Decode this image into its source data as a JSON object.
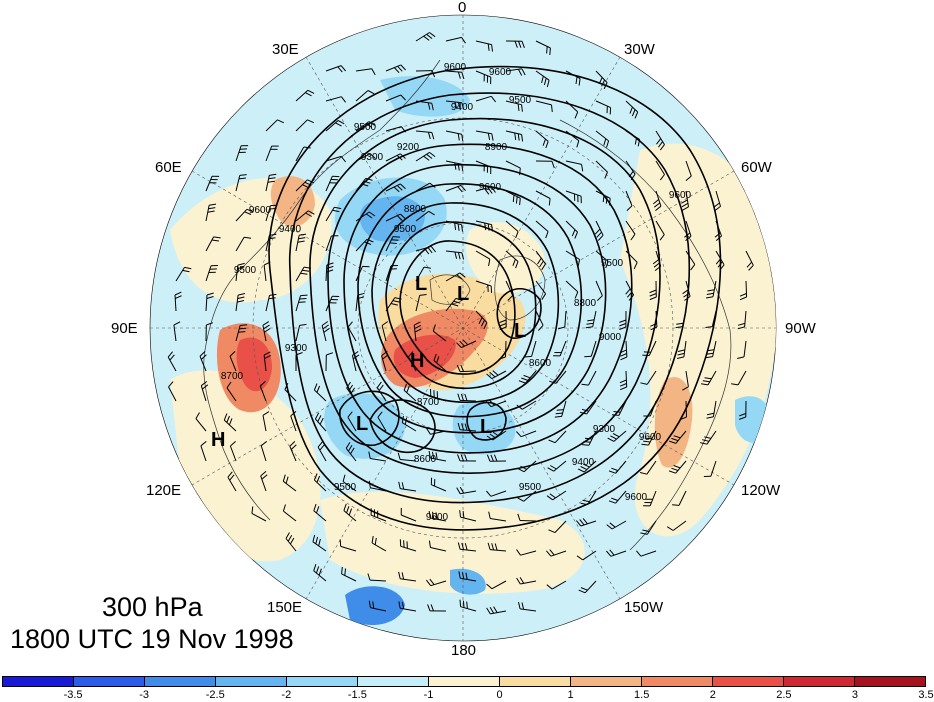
{
  "title": {
    "level": "300 hPa",
    "time": "1800 UTC 19 Nov 1998"
  },
  "map": {
    "projection": "polar-stereographic-north",
    "longitude_labels": [
      "0",
      "30W",
      "60W",
      "90W",
      "120W",
      "150W",
      "180",
      "150E",
      "120E",
      "90E",
      "60E",
      "30E"
    ],
    "systems": [
      {
        "type": "H",
        "name": "high-siberia-arctic"
      },
      {
        "type": "H",
        "name": "high-east-asia"
      },
      {
        "type": "L",
        "name": "low-kara"
      },
      {
        "type": "L",
        "name": "low-barents"
      },
      {
        "type": "L",
        "name": "low-greenland"
      },
      {
        "type": "L",
        "name": "low-okhotsk"
      },
      {
        "type": "L",
        "name": "low-bering"
      }
    ],
    "contour_labels": [
      "9600",
      "9500",
      "9400",
      "9300",
      "9200",
      "9100",
      "9000",
      "8900",
      "8800",
      "8700",
      "8600"
    ],
    "contour_label_instances": [
      {
        "text": "9600"
      },
      {
        "text": "9600"
      },
      {
        "text": "9500"
      },
      {
        "text": "9400"
      },
      {
        "text": "9500"
      },
      {
        "text": "9300"
      },
      {
        "text": "9200"
      },
      {
        "text": "9600"
      },
      {
        "text": "9400"
      },
      {
        "text": "9500"
      },
      {
        "text": "9300"
      },
      {
        "text": "8800"
      },
      {
        "text": "8700"
      },
      {
        "text": "8600"
      },
      {
        "text": "8700"
      },
      {
        "text": "8600"
      },
      {
        "text": "9500"
      },
      {
        "text": "9600"
      },
      {
        "text": "9500"
      },
      {
        "text": "9400"
      },
      {
        "text": "9300"
      },
      {
        "text": "9600"
      },
      {
        "text": "9600"
      },
      {
        "text": "9500"
      },
      {
        "text": "9000"
      },
      {
        "text": "8800"
      },
      {
        "text": "8900"
      },
      {
        "text": "9600"
      },
      {
        "text": "9500"
      },
      {
        "text": "9600"
      }
    ],
    "colors": {
      "background": "#ffffff",
      "ocean_fill": "#cdeff8",
      "contour": "#000000",
      "barb": "#000000"
    }
  },
  "colorbar": {
    "ticks": [
      "-3.5",
      "-3",
      "-2.5",
      "-2",
      "-1.5",
      "-1",
      "0",
      "1",
      "1.5",
      "2",
      "2.5",
      "3",
      "3.5"
    ],
    "colors": [
      "#1a1ad6",
      "#2b5de8",
      "#3f8ce9",
      "#64b4f0",
      "#94d8f5",
      "#c6eef8",
      "#fbf2d2",
      "#f8dca0",
      "#f4b584",
      "#ef8a65",
      "#e85048",
      "#d02832",
      "#a8121e"
    ]
  }
}
